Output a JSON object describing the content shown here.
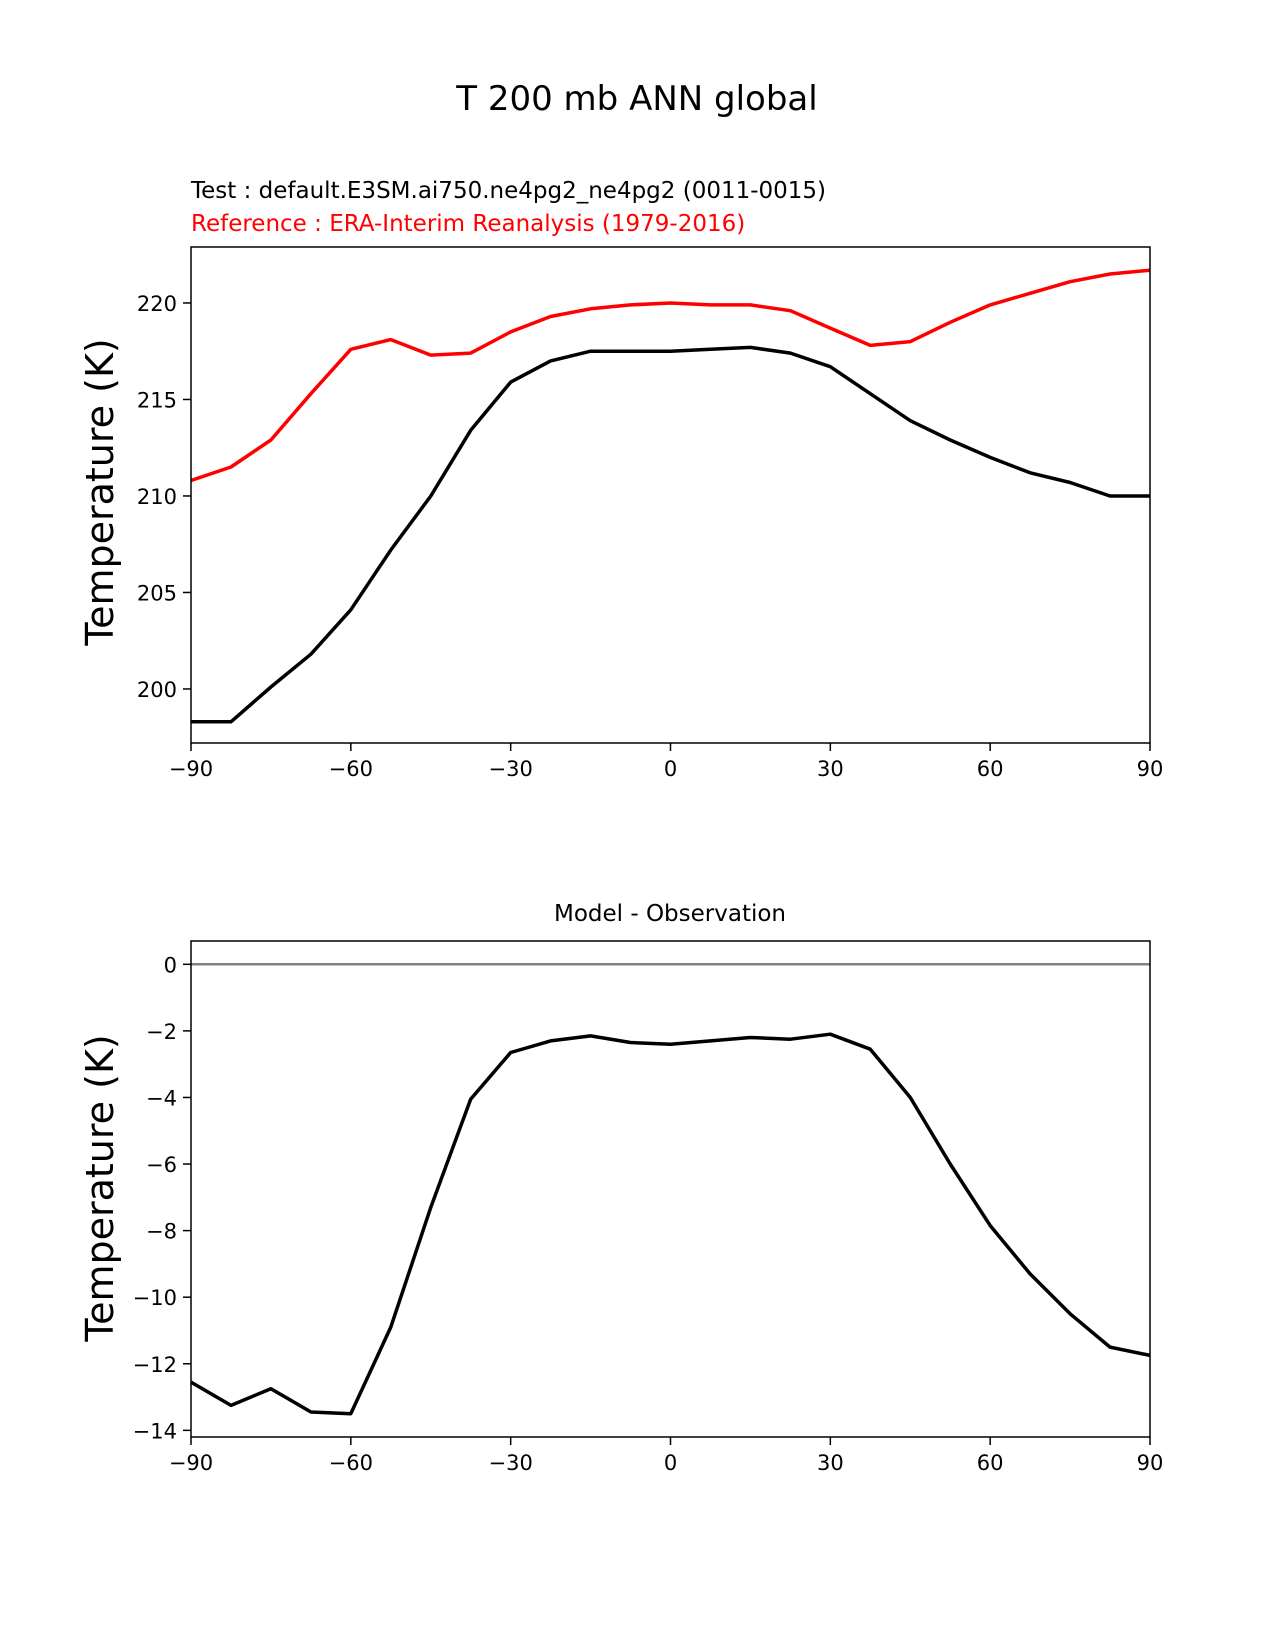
{
  "suptitle": "T 200 mb ANN global",
  "chart_data": [
    {
      "type": "line",
      "title": "",
      "test_label": "Test : default.E3SM.ai750.ne4pg2_ne4pg2 (0011-0015)",
      "reference_label": "Reference : ERA-Interim Reanalysis (1979-2016)",
      "xlabel": "",
      "ylabel": "Temperature (K)",
      "xlim": [
        -90,
        90
      ],
      "ylim": [
        197.2,
        222.9
      ],
      "xticks": [
        -90,
        -60,
        -30,
        0,
        30,
        60,
        90
      ],
      "xtick_labels": [
        "−90",
        "−60",
        "−30",
        "0",
        "30",
        "60",
        "90"
      ],
      "yticks": [
        200,
        205,
        210,
        215,
        220
      ],
      "ytick_labels": [
        "200",
        "205",
        "210",
        "215",
        "220"
      ],
      "series": [
        {
          "name": "Test",
          "color": "#000000",
          "x": [
            -90,
            -82.5,
            -75,
            -67.5,
            -60,
            -52.5,
            -45,
            -37.5,
            -30,
            -22.5,
            -15,
            -7.5,
            0,
            7.5,
            15,
            22.5,
            30,
            37.5,
            45,
            52.5,
            60,
            67.5,
            75,
            82.5,
            90
          ],
          "values": [
            198.3,
            198.3,
            200.1,
            201.8,
            204.1,
            207.2,
            210.0,
            213.4,
            215.9,
            217.0,
            217.5,
            217.5,
            217.5,
            217.6,
            217.7,
            217.4,
            216.7,
            215.3,
            213.9,
            212.9,
            212.0,
            211.2,
            210.7,
            210.0,
            210.0
          ]
        },
        {
          "name": "Reference",
          "color": "#ff0000",
          "x": [
            -90,
            -82.5,
            -75,
            -67.5,
            -60,
            -52.5,
            -45,
            -37.5,
            -30,
            -22.5,
            -15,
            -7.5,
            0,
            7.5,
            15,
            22.5,
            30,
            37.5,
            45,
            52.5,
            60,
            67.5,
            75,
            82.5,
            90
          ],
          "values": [
            210.8,
            211.5,
            212.9,
            215.3,
            217.6,
            218.1,
            217.3,
            217.4,
            218.5,
            219.3,
            219.7,
            219.9,
            220.0,
            219.9,
            219.9,
            219.6,
            218.7,
            217.8,
            218.0,
            219.0,
            219.9,
            220.5,
            221.1,
            221.5,
            221.7
          ]
        }
      ]
    },
    {
      "type": "line",
      "title": "Model - Observation",
      "xlabel": "",
      "ylabel": "Temperature (K)",
      "xlim": [
        -90,
        90
      ],
      "ylim": [
        -14.2,
        0.7
      ],
      "xticks": [
        -90,
        -60,
        -30,
        0,
        30,
        60,
        90
      ],
      "xtick_labels": [
        "−90",
        "−60",
        "−30",
        "0",
        "30",
        "60",
        "90"
      ],
      "yticks": [
        0,
        -2,
        -4,
        -6,
        -8,
        -10,
        -12,
        -14
      ],
      "ytick_labels": [
        "0",
        "−2",
        "−4",
        "−6",
        "−8",
        "−10",
        "−12",
        "−14"
      ],
      "zero_line": {
        "y": 0,
        "color": "#808080"
      },
      "series": [
        {
          "name": "Model - Observation",
          "color": "#000000",
          "x": [
            -90,
            -82.5,
            -75,
            -67.5,
            -60,
            -52.5,
            -45,
            -37.5,
            -30,
            -22.5,
            -15,
            -7.5,
            0,
            7.5,
            15,
            22.5,
            30,
            37.5,
            45,
            52.5,
            60,
            67.5,
            75,
            82.5,
            90
          ],
          "values": [
            -12.55,
            -13.25,
            -12.75,
            -13.45,
            -13.5,
            -10.9,
            -7.3,
            -4.05,
            -2.65,
            -2.3,
            -2.15,
            -2.35,
            -2.4,
            -2.3,
            -2.2,
            -2.25,
            -2.1,
            -2.55,
            -4.0,
            -6.0,
            -7.85,
            -9.3,
            -10.5,
            -11.5,
            -11.75
          ]
        }
      ]
    }
  ]
}
